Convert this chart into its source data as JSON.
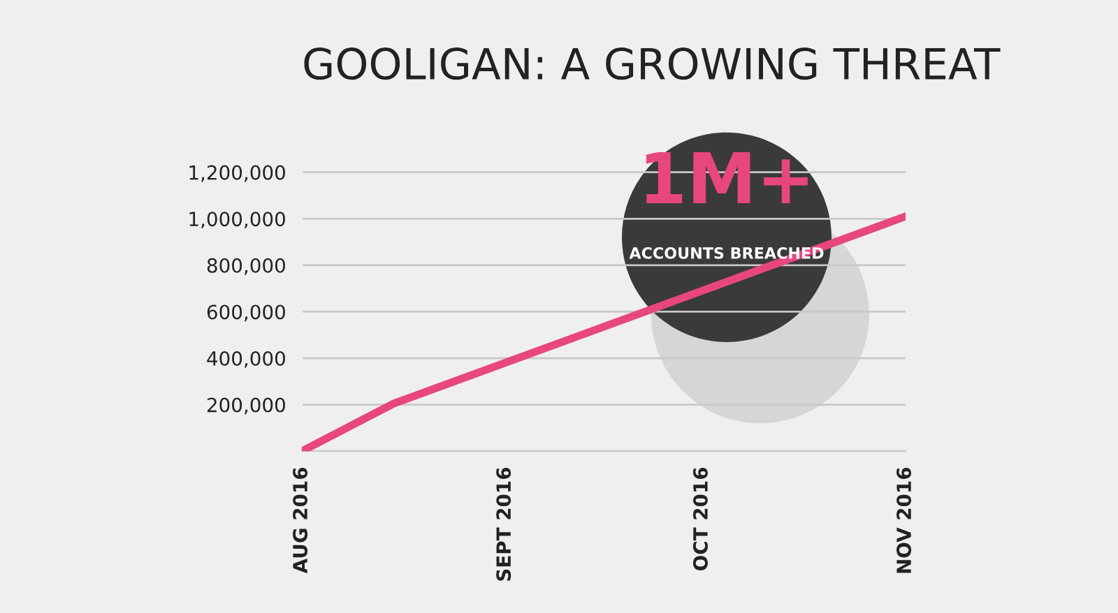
{
  "chart_data": {
    "type": "line",
    "title": "GOOLIGAN: A GROWING THREAT",
    "x": [
      "2016-08-01",
      "2016-08-15",
      "2016-11-01"
    ],
    "series": [
      {
        "color": "#e8467f",
        "values": [
          0,
          205000,
          1010000
        ]
      }
    ],
    "xlim": [
      "2016-08-01",
      "2016-11-01"
    ],
    "xticks": [
      {
        "value": "2016-08-01",
        "label": "AUG 2016"
      },
      {
        "value": "2016-09-01",
        "label": "SEPT 2016"
      },
      {
        "value": "2016-10-01",
        "label": "OCT 2016"
      },
      {
        "value": "2016-11-01",
        "label": "NOV 2016"
      }
    ],
    "ylim": [
      0,
      1250000
    ],
    "yticks": [
      {
        "value": 0,
        "label": null
      },
      {
        "value": 200000,
        "label": "200,000"
      },
      {
        "value": 400000,
        "label": "400,000"
      },
      {
        "value": 600000,
        "label": "600,000"
      },
      {
        "value": 800000,
        "label": "800,000"
      },
      {
        "value": 1000000,
        "label": "1,000,000"
      },
      {
        "value": 1200000,
        "label": "1,200,000"
      }
    ],
    "grid": "y",
    "marker": "none",
    "line_style": "solid",
    "legend": false,
    "annotations": [
      "1M+",
      "ACCOUNTS BREACHED"
    ]
  }
}
